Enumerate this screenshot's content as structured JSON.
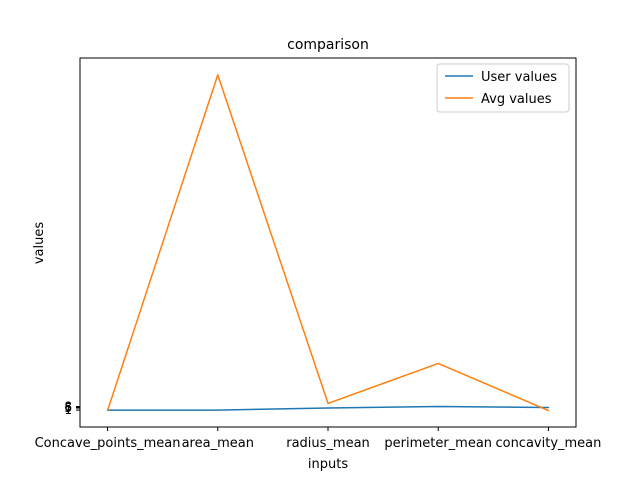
{
  "chart_data": {
    "type": "line",
    "title": "comparison",
    "xlabel": "inputs",
    "ylabel": "values",
    "categories": [
      "Concave_points_mean",
      "area_mean",
      "radius_mean",
      "perimeter_mean",
      "concavity_mean"
    ],
    "series": [
      {
        "name": "User values",
        "color": "#1f77b4",
        "values": [
          1,
          1,
          5,
          8,
          6
        ]
      },
      {
        "name": "Avg values",
        "color": "#ff7f0e",
        "values": [
          0.05,
          655,
          14,
          92,
          0.09
        ]
      }
    ],
    "ytick_labels": [
      "1",
      "5",
      "6",
      "8"
    ],
    "ytick_values": [
      1,
      5,
      6,
      8
    ],
    "ylim": [
      -32,
      688
    ],
    "xlim": [
      -0.25,
      4.25
    ],
    "legend_position": "upper right",
    "grid": false
  }
}
